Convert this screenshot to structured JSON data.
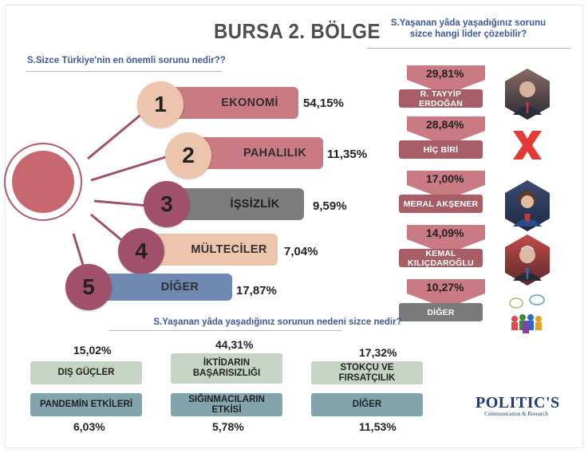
{
  "title": "BURSA 2. BÖLGE",
  "colors": {
    "rose": "#c97a83",
    "beige": "#ecc5ac",
    "gray": "#7d7d7d",
    "mauve": "#a0506a",
    "slate": "#6e88b0",
    "sage": "#c6d4c5",
    "teal": "#81a4ad",
    "leader_bg": "#a85e66"
  },
  "left_question": "S.Sizce Türkiye'nin en önemli sorunu nedir??",
  "right_question": {
    "line1": "S.Yaşanan yâda yaşadığınız sorunu",
    "line2": "sizce hangi lider çözebilir?"
  },
  "bottom_question": "S.Yaşanan yâda yaşadığınız sorunun nedeni sizce nedir?",
  "logo": {
    "text": "POLITIC'S",
    "sub": "Communication & Research"
  },
  "chart_data": [
    {
      "type": "bar",
      "title": "S.Sizce Türkiye'nin en önemli sorunu nedir??",
      "categories": [
        "EKONOMİ",
        "PAHALILIK",
        "İŞSİZLİK",
        "MÜLTECİLER",
        "DİĞER"
      ],
      "ranks": [
        "1",
        "2",
        "3",
        "4",
        "5"
      ],
      "values": [
        54.15,
        11.35,
        9.59,
        7.04,
        17.87
      ],
      "labels": [
        "54,15%",
        "11,35%",
        "9,59%",
        "7,04%",
        "17,87%"
      ]
    },
    {
      "type": "bar",
      "title": "S.Yaşanan yâda yaşadığınız sorunu sizce hangi lider çözebilir?",
      "categories": [
        "R. TAYYİP ERDOĞAN",
        "HİÇ BİRİ",
        "MERAL AKŞENER",
        "KEMAL KILIÇDAROĞLU",
        "DİĞER"
      ],
      "values": [
        29.81,
        28.84,
        17.0,
        14.09,
        10.27
      ],
      "labels": [
        "29,81%",
        "28,84%",
        "17,00%",
        "14,09%",
        "10,27%"
      ]
    },
    {
      "type": "table",
      "title": "S.Yaşanan yâda yaşadığınız sorunun nedeni sizce nedir?",
      "categories": [
        "DIŞ GÜÇLER",
        "İKTİDARIN BAŞARISIZLIĞI",
        "STOKÇU VE FIRSATÇILIK",
        "PANDEMİN ETKİLERİ",
        "SIĞINMACILARIN ETKİSİ",
        "DİĞER"
      ],
      "values": [
        15.02,
        44.31,
        17.32,
        6.03,
        5.78,
        11.53
      ],
      "labels": [
        "15,02%",
        "44,31%",
        "17,32%",
        "6,03%",
        "5,78%",
        "11,53%"
      ]
    }
  ],
  "reason_lines": {
    "iktidar_line1": "İKTİDARIN",
    "iktidar_line2": "BAŞARISIZLIĞI"
  }
}
